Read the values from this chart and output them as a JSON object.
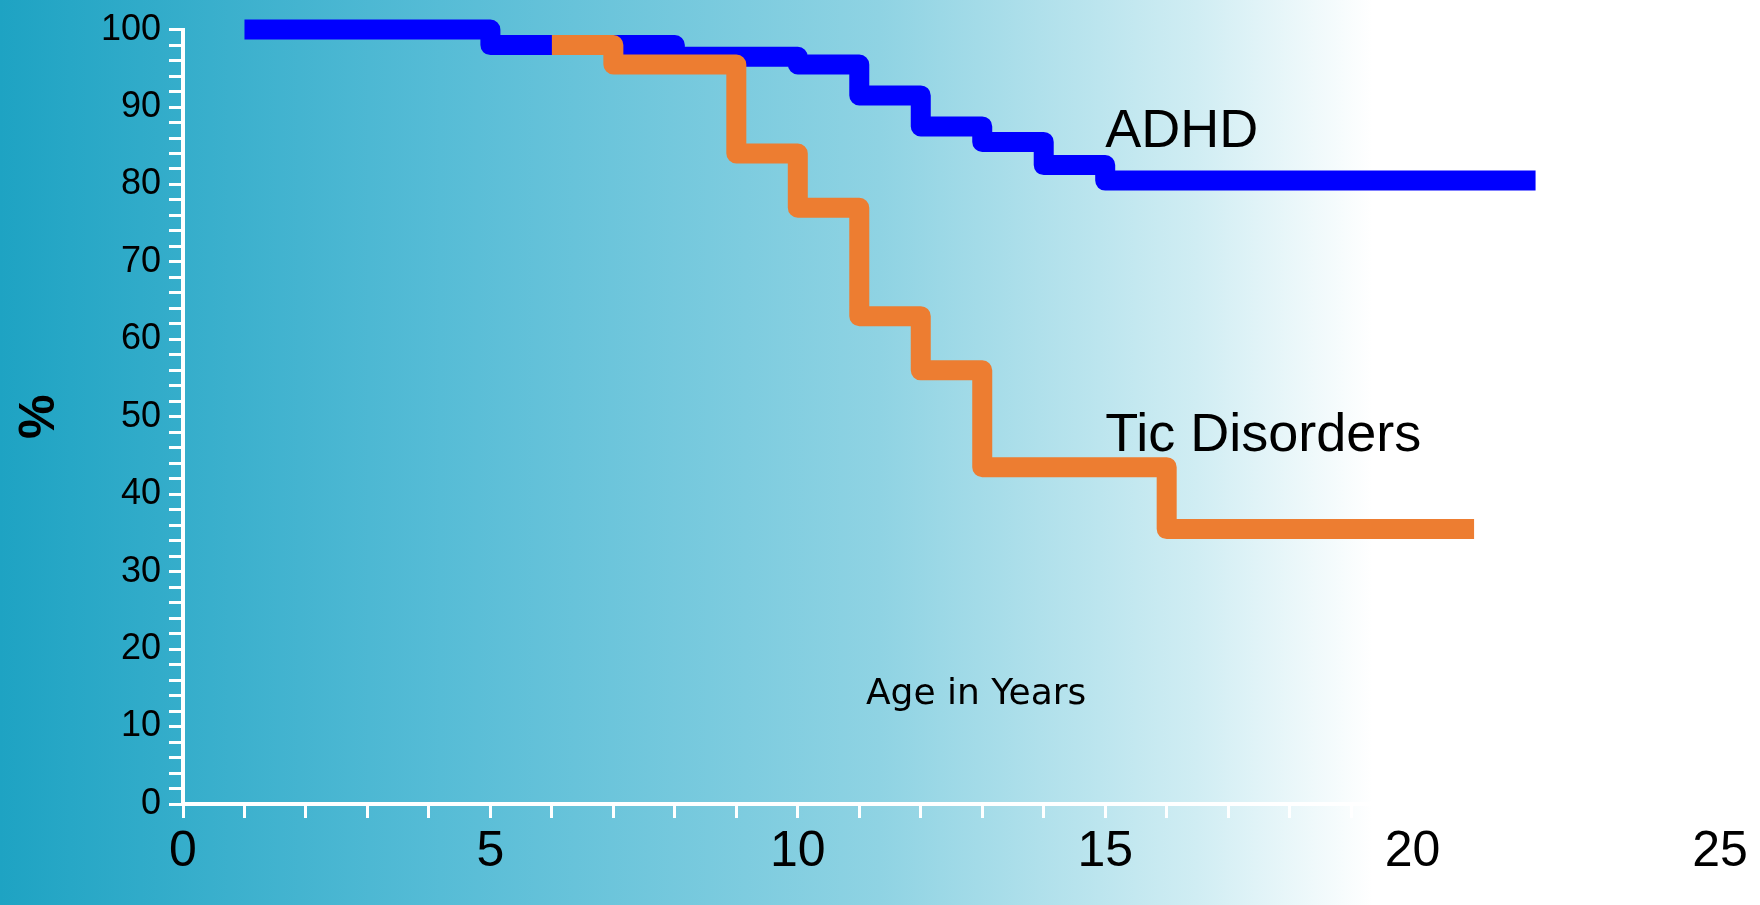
{
  "chart_data": {
    "type": "step",
    "xlabel": "Age in Years",
    "ylabel": "%",
    "series": [
      {
        "name": "ADHD",
        "color": "#0000ff",
        "x": [
          1,
          5,
          8,
          10,
          11,
          12,
          13,
          14,
          15,
          22
        ],
        "values": [
          100,
          98,
          96.5,
          95.5,
          91.5,
          87.5,
          85.5,
          82.5,
          80.5,
          80.5
        ]
      },
      {
        "name": "Tic Disorders",
        "color": "#ed7d31",
        "x": [
          6,
          7,
          9,
          10,
          11,
          12,
          13,
          16,
          21
        ],
        "values": [
          98,
          95.5,
          84,
          77,
          63,
          56,
          43.5,
          35.5,
          35.5
        ]
      }
    ],
    "xlim": [
      0,
      25
    ],
    "xticks": [
      0,
      {
        "value": 1,
        "label": null
      },
      {
        "value": 2,
        "label": null
      },
      {
        "value": 3,
        "label": null
      },
      {
        "value": 4,
        "label": null
      },
      5,
      {
        "value": 6,
        "label": null
      },
      {
        "value": 7,
        "label": null
      },
      {
        "value": 8,
        "label": null
      },
      {
        "value": 9,
        "label": null
      },
      10,
      {
        "value": 11,
        "label": null
      },
      {
        "value": 12,
        "label": null
      },
      {
        "value": 13,
        "label": null
      },
      {
        "value": 14,
        "label": null
      },
      15,
      {
        "value": 16,
        "label": null
      },
      {
        "value": 17,
        "label": null
      },
      {
        "value": 18,
        "label": null
      },
      {
        "value": 19,
        "label": null
      },
      20,
      25
    ],
    "ylim": [
      0,
      100
    ],
    "yticks": [
      0,
      {
        "value": 2,
        "label": null
      },
      {
        "value": 4,
        "label": null
      },
      {
        "value": 6,
        "label": null
      },
      {
        "value": 8,
        "label": null
      },
      10,
      {
        "value": 12,
        "label": null
      },
      {
        "value": 14,
        "label": null
      },
      {
        "value": 16,
        "label": null
      },
      {
        "value": 18,
        "label": null
      },
      20,
      {
        "value": 22,
        "label": null
      },
      {
        "value": 24,
        "label": null
      },
      {
        "value": 26,
        "label": null
      },
      {
        "value": 28,
        "label": null
      },
      30,
      {
        "value": 32,
        "label": null
      },
      {
        "value": 34,
        "label": null
      },
      {
        "value": 36,
        "label": null
      },
      {
        "value": 38,
        "label": null
      },
      40,
      {
        "value": 42,
        "label": null
      },
      {
        "value": 44,
        "label": null
      },
      {
        "value": 46,
        "label": null
      },
      {
        "value": 48,
        "label": null
      },
      50,
      {
        "value": 52,
        "label": null
      },
      {
        "value": 54,
        "label": null
      },
      {
        "value": 56,
        "label": null
      },
      {
        "value": 58,
        "label": null
      },
      60,
      {
        "value": 62,
        "label": null
      },
      {
        "value": 64,
        "label": null
      },
      {
        "value": 66,
        "label": null
      },
      {
        "value": 68,
        "label": null
      },
      70,
      {
        "value": 72,
        "label": null
      },
      {
        "value": 74,
        "label": null
      },
      {
        "value": 76,
        "label": null
      },
      {
        "value": 78,
        "label": null
      },
      80,
      {
        "value": 82,
        "label": null
      },
      {
        "value": 84,
        "label": null
      },
      {
        "value": 86,
        "label": null
      },
      {
        "value": 88,
        "label": null
      },
      90,
      {
        "value": 92,
        "label": null
      },
      {
        "value": 94,
        "label": null
      },
      {
        "value": 96,
        "label": null
      },
      {
        "value": 98,
        "label": null
      },
      100
    ],
    "grid": false,
    "legend": false,
    "marker": "none",
    "line_style": "solid"
  }
}
